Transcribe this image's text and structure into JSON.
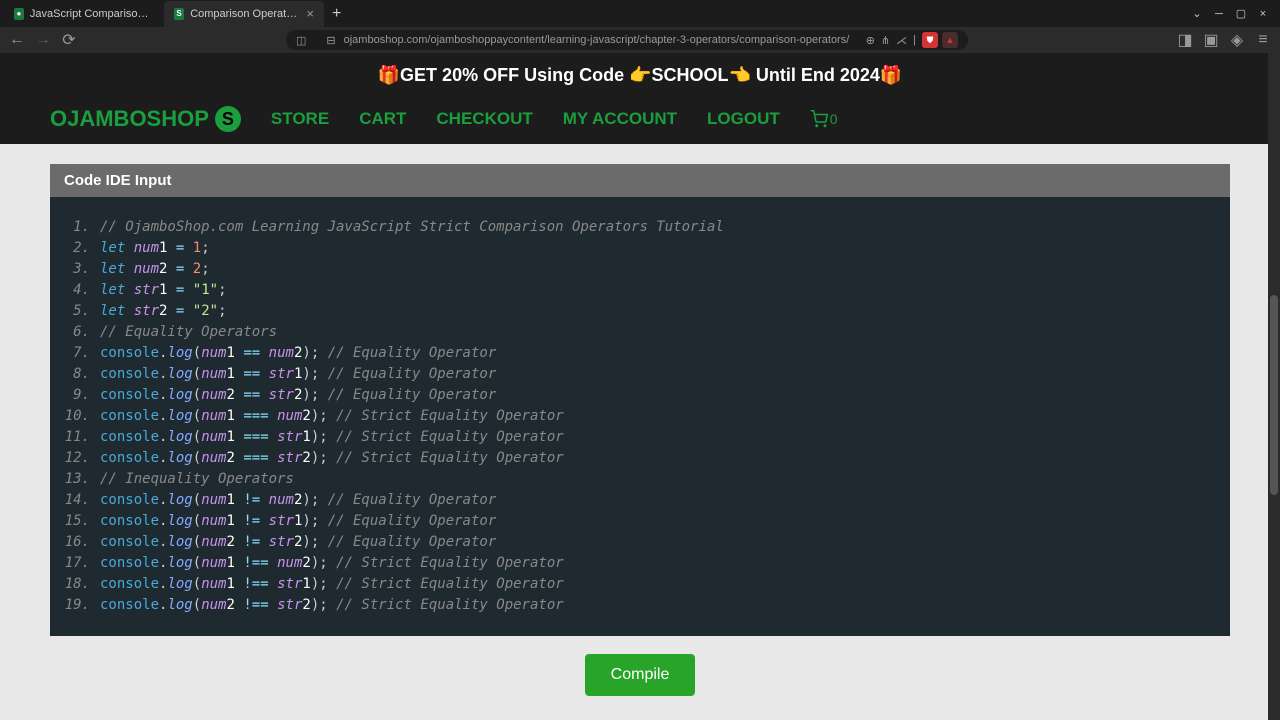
{
  "tabs": [
    {
      "title": "JavaScript Comparison Operat"
    },
    {
      "title": "Comparison Operators - O"
    }
  ],
  "url": "ojamboshop.com/ojamboshoppaycontent/learning-javascript/chapter-3-operators/comparison-operators/",
  "banner": "🎁GET 20% OFF Using Code 👉SCHOOL👈 Until End 2024🎁",
  "logo": "OJAMBOSHOP",
  "nav": {
    "store": "STORE",
    "cart": "CART",
    "checkout": "CHECKOUT",
    "account": "MY ACCOUNT",
    "logout": "LOGOUT",
    "cart_count": "0"
  },
  "ide_header": "Code IDE Input",
  "code_lines": [
    {
      "n": "1.",
      "html": "<span class='c-comment'>// OjamboShop.com Learning JavaScript Strict Comparison Operators Tutorial</span>"
    },
    {
      "n": "2.",
      "html": "<span class='c-let'>let</span> <span class='c-var'>num</span><span class='c-white'>1</span> <span class='c-op'>=</span> <span class='c-num'>1</span>;"
    },
    {
      "n": "3.",
      "html": "<span class='c-let'>let</span> <span class='c-var'>num</span><span class='c-white'>2</span> <span class='c-op'>=</span> <span class='c-num'>2</span>;"
    },
    {
      "n": "4.",
      "html": "<span class='c-let'>let</span> <span class='c-var'>str</span><span class='c-white'>1</span> <span class='c-op'>=</span> <span class='c-str'>\"1\"</span>;"
    },
    {
      "n": "5.",
      "html": "<span class='c-let'>let</span> <span class='c-var'>str</span><span class='c-white'>2</span> <span class='c-op'>=</span> <span class='c-str'>\"2\"</span>;"
    },
    {
      "n": "6.",
      "html": "<span class='c-comment'>// Equality Operators</span>"
    },
    {
      "n": "7.",
      "html": "<span class='c-console'>console</span>.<span class='c-method'>log</span>(<span class='c-var'>num</span><span class='c-white'>1</span> <span class='c-op'>==</span> <span class='c-var'>num</span><span class='c-white'>2</span>); <span class='c-comment'>// Equality Operator</span>"
    },
    {
      "n": "8.",
      "html": "<span class='c-console'>console</span>.<span class='c-method'>log</span>(<span class='c-var'>num</span><span class='c-white'>1</span> <span class='c-op'>==</span> <span class='c-var'>str</span><span class='c-white'>1</span>); <span class='c-comment'>// Equality Operator</span>"
    },
    {
      "n": "9.",
      "html": "<span class='c-console'>console</span>.<span class='c-method'>log</span>(<span class='c-var'>num</span><span class='c-white'>2</span> <span class='c-op'>==</span> <span class='c-var'>str</span><span class='c-white'>2</span>); <span class='c-comment'>// Equality Operator</span>"
    },
    {
      "n": "10.",
      "html": "<span class='c-console'>console</span>.<span class='c-method'>log</span>(<span class='c-var'>num</span><span class='c-white'>1</span> <span class='c-op'>===</span> <span class='c-var'>num</span><span class='c-white'>2</span>); <span class='c-comment'>// Strict Equality Operator</span>"
    },
    {
      "n": "11.",
      "html": "<span class='c-console'>console</span>.<span class='c-method'>log</span>(<span class='c-var'>num</span><span class='c-white'>1</span> <span class='c-op'>===</span> <span class='c-var'>str</span><span class='c-white'>1</span>); <span class='c-comment'>// Strict Equality Operator</span>"
    },
    {
      "n": "12.",
      "html": "<span class='c-console'>console</span>.<span class='c-method'>log</span>(<span class='c-var'>num</span><span class='c-white'>2</span> <span class='c-op'>===</span> <span class='c-var'>str</span><span class='c-white'>2</span>); <span class='c-comment'>// Strict Equality Operator</span>"
    },
    {
      "n": "13.",
      "html": "<span class='c-comment'>// Inequality Operators</span>"
    },
    {
      "n": "14.",
      "html": "<span class='c-console'>console</span>.<span class='c-method'>log</span>(<span class='c-var'>num</span><span class='c-white'>1</span> <span class='c-op'>!=</span> <span class='c-var'>num</span><span class='c-white'>2</span>); <span class='c-comment'>// Equality Operator</span>"
    },
    {
      "n": "15.",
      "html": "<span class='c-console'>console</span>.<span class='c-method'>log</span>(<span class='c-var'>num</span><span class='c-white'>1</span> <span class='c-op'>!=</span> <span class='c-var'>str</span><span class='c-white'>1</span>); <span class='c-comment'>// Equality Operator</span>"
    },
    {
      "n": "16.",
      "html": "<span class='c-console'>console</span>.<span class='c-method'>log</span>(<span class='c-var'>num</span><span class='c-white'>2</span> <span class='c-op'>!=</span> <span class='c-var'>str</span><span class='c-white'>2</span>); <span class='c-comment'>// Equality Operator</span>"
    },
    {
      "n": "17.",
      "html": "<span class='c-console'>console</span>.<span class='c-method'>log</span>(<span class='c-var'>num</span><span class='c-white'>1</span> <span class='c-op'>!==</span> <span class='c-var'>num</span><span class='c-white'>2</span>); <span class='c-comment'>// Strict Equality Operator</span>"
    },
    {
      "n": "18.",
      "html": "<span class='c-console'>console</span>.<span class='c-method'>log</span>(<span class='c-var'>num</span><span class='c-white'>1</span> <span class='c-op'>!==</span> <span class='c-var'>str</span><span class='c-white'>1</span>); <span class='c-comment'>// Strict Equality Operator</span>"
    },
    {
      "n": "19.",
      "html": "<span class='c-console'>console</span>.<span class='c-method'>log</span>(<span class='c-var'>num</span><span class='c-white'>2</span> <span class='c-op'>!==</span> <span class='c-var'>str</span><span class='c-white'>2</span>); <span class='c-comment'>// Strict Equality Operator</span>"
    }
  ],
  "compile_label": "Compile"
}
